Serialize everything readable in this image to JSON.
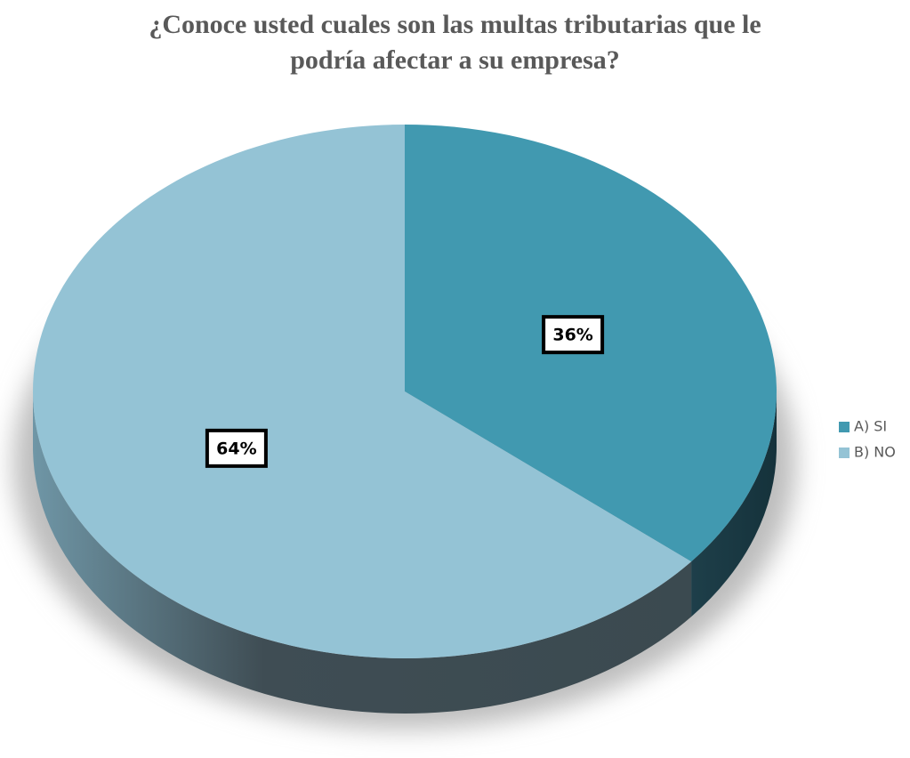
{
  "chart_data": {
    "type": "pie",
    "title": "¿Conoce usted cuales son las multas tributarias que le podría afectar a su empresa?",
    "categories": [
      "A) SI",
      "B) NO"
    ],
    "values": [
      36,
      64
    ],
    "value_labels": [
      "36%",
      "64%"
    ],
    "colors": [
      "#4199b0",
      "#94c3d5"
    ],
    "legend": "right"
  }
}
